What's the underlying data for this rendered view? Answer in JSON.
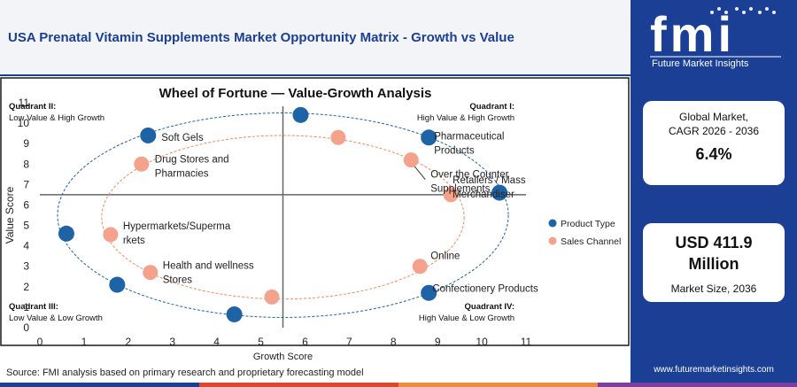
{
  "header": {
    "title": "USA Prenatal Vitamin Supplements Market Opportunity Matrix - Growth vs Value"
  },
  "brand": {
    "letters": "fmi",
    "tagline": "Future Market Insights",
    "url": "www.futuremarketinsights.com"
  },
  "sidebar": {
    "cagr_label": "Global Market,\nCAGR 2026 - 2036",
    "cagr_value": "6.4%",
    "size_value": "USD 411.9\nMillion",
    "size_label": "Market Size, 2036"
  },
  "source": "Source: FMI analysis based on primary research and proprietary forecasting model",
  "colors": {
    "primary_blue": "#1b3f95",
    "product_type": "#1d63a6",
    "sales_channel": "#f4a28c",
    "footer": [
      "#1b3f95",
      "#e0462b",
      "#f08a3c",
      "#7a3fa0"
    ]
  },
  "chart_data": {
    "type": "scatter",
    "title": "Wheel of Fortune — Value-Growth Analysis",
    "xlabel": "Growth Score",
    "ylabel": "Value Score",
    "xlim": [
      0,
      11
    ],
    "ylim": [
      0,
      11
    ],
    "xticks": [
      0,
      1,
      2,
      3,
      4,
      5,
      6,
      7,
      8,
      9,
      10,
      11
    ],
    "yticks": [
      0,
      1,
      2,
      3,
      4,
      5,
      6,
      7,
      8,
      9,
      10,
      11
    ],
    "divider": {
      "x": 5.5,
      "y": 6.5
    },
    "grid": false,
    "legend_position": "right",
    "quadrants": [
      {
        "id": "q1",
        "title": "Quadrant I:",
        "subtitle": "High Value & High Growth",
        "corner": "top-right"
      },
      {
        "id": "q2",
        "title": "Quadrant II:",
        "subtitle": "Low Value & High Growth",
        "corner": "top-left"
      },
      {
        "id": "q3",
        "title": "Quadrant III:",
        "subtitle": "Low Value & Low Growth",
        "corner": "bottom-left"
      },
      {
        "id": "q4",
        "title": "Quadrant IV:",
        "subtitle": "High Value & Low Growth",
        "corner": "bottom-right"
      }
    ],
    "series": [
      {
        "name": "Product Type",
        "color": "#1d63a6",
        "points": [
          {
            "x": 5.9,
            "y": 10.4,
            "label": ""
          },
          {
            "x": 2.45,
            "y": 9.4,
            "label": "Soft Gels"
          },
          {
            "x": 8.8,
            "y": 9.3,
            "label": "Pharmaceutical\nProducts"
          },
          {
            "x": 10.4,
            "y": 6.6,
            "label": ""
          },
          {
            "x": 0.6,
            "y": 4.6,
            "label": ""
          },
          {
            "x": 1.75,
            "y": 2.1,
            "label": ""
          },
          {
            "x": 8.8,
            "y": 1.7,
            "label": "Confectionery Products"
          },
          {
            "x": 4.4,
            "y": 0.65,
            "label": ""
          }
        ]
      },
      {
        "name": "Sales Channel",
        "color": "#f4a28c",
        "points": [
          {
            "x": 6.75,
            "y": 9.3,
            "label": ""
          },
          {
            "x": 2.3,
            "y": 8.0,
            "label": "Drug Stores and\nPharmacies"
          },
          {
            "x": 8.4,
            "y": 8.2,
            "label": "Over the Counter\nSupplements"
          },
          {
            "x": 9.3,
            "y": 6.5,
            "label": "Retailers / Mass\nMerchandiser"
          },
          {
            "x": 1.6,
            "y": 4.55,
            "label": "Hypermarkets/Superma\nrkets"
          },
          {
            "x": 2.5,
            "y": 2.7,
            "label": "Health and wellness\nStores"
          },
          {
            "x": 8.6,
            "y": 3.0,
            "label": "Online"
          },
          {
            "x": 5.25,
            "y": 1.5,
            "label": ""
          }
        ]
      }
    ]
  }
}
